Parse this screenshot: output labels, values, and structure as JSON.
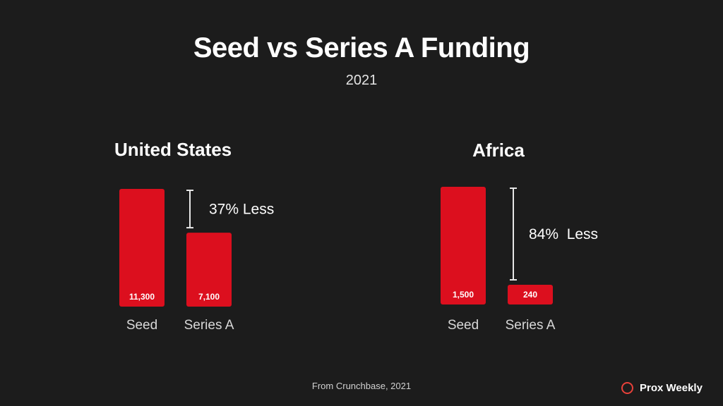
{
  "header": {
    "title": "Seed vs Series A Funding",
    "subtitle": "2021"
  },
  "chart_data": [
    {
      "type": "bar",
      "title": "United States",
      "categories": [
        "Seed",
        "Series A"
      ],
      "values": [
        11300,
        7100
      ],
      "value_labels": [
        "11,300",
        "7,100"
      ],
      "annotation": "37% Less"
    },
    {
      "type": "bar",
      "title": "Africa",
      "categories": [
        "Seed",
        "Series A"
      ],
      "values": [
        1500,
        240
      ],
      "value_labels": [
        "1,500",
        "240"
      ],
      "annotation": "84%  Less"
    }
  ],
  "footer": {
    "source": "From Crunchbase, 2021",
    "brand": "Prox Weekly"
  },
  "colors": {
    "background": "#1c1c1c",
    "bar": "#dc0f1e",
    "brand_accent": "#e8413a"
  }
}
